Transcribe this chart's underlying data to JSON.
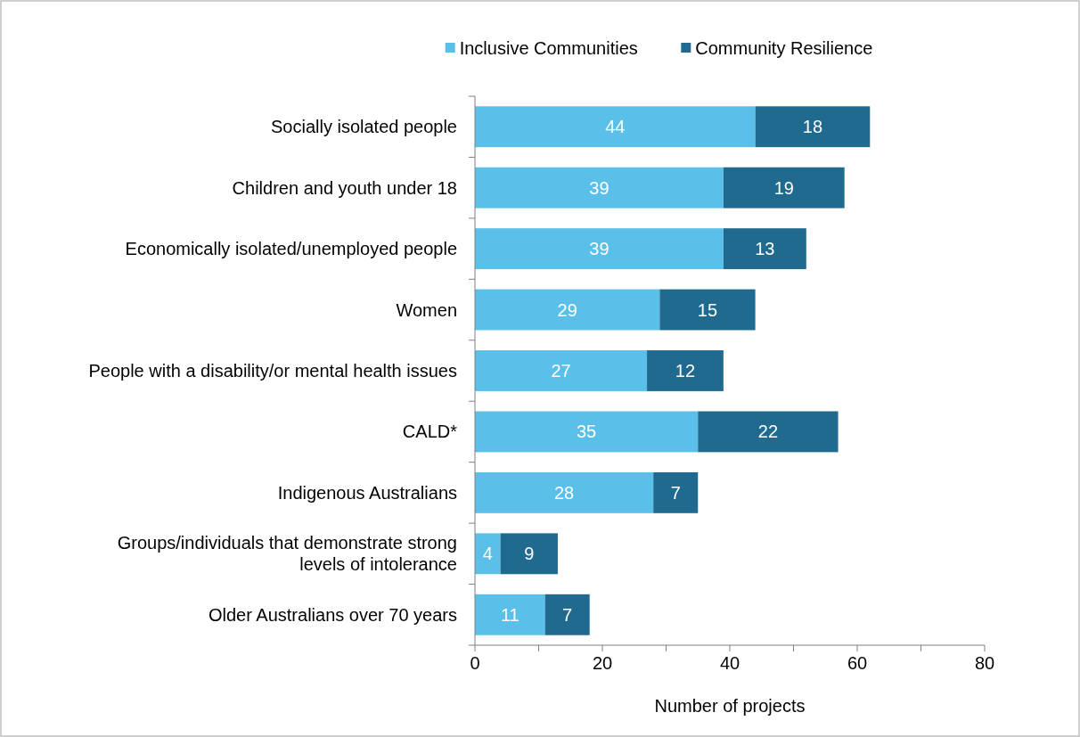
{
  "chart_data": {
    "type": "bar",
    "orientation": "horizontal",
    "stacked": true,
    "xlabel": "Number of projects",
    "categories": [
      "Socially isolated people",
      "Children and youth under 18",
      "Economically isolated/unemployed people",
      "Women",
      "People with a disability/or mental health issues",
      "CALD*",
      "Indigenous Australians",
      "Groups/individuals that demonstrate strong levels of intolerance",
      "Older Australians over 70 years"
    ],
    "series": [
      {
        "name": "Inclusive Communities",
        "color": "#5bc0e9",
        "values": [
          44,
          39,
          39,
          29,
          27,
          35,
          28,
          4,
          11
        ]
      },
      {
        "name": "Community Resilience",
        "color": "#1f6a8e",
        "values": [
          18,
          19,
          13,
          15,
          12,
          22,
          7,
          9,
          7
        ]
      }
    ],
    "xlim": [
      0,
      80
    ],
    "xticks": [
      0,
      {
        "value": 10,
        "label": null
      },
      20,
      {
        "value": 30,
        "label": null
      },
      40,
      {
        "value": 50,
        "label": null
      },
      60,
      {
        "value": 70,
        "label": null
      },
      80
    ],
    "data_labels": true,
    "legend": "top",
    "grid": false
  }
}
